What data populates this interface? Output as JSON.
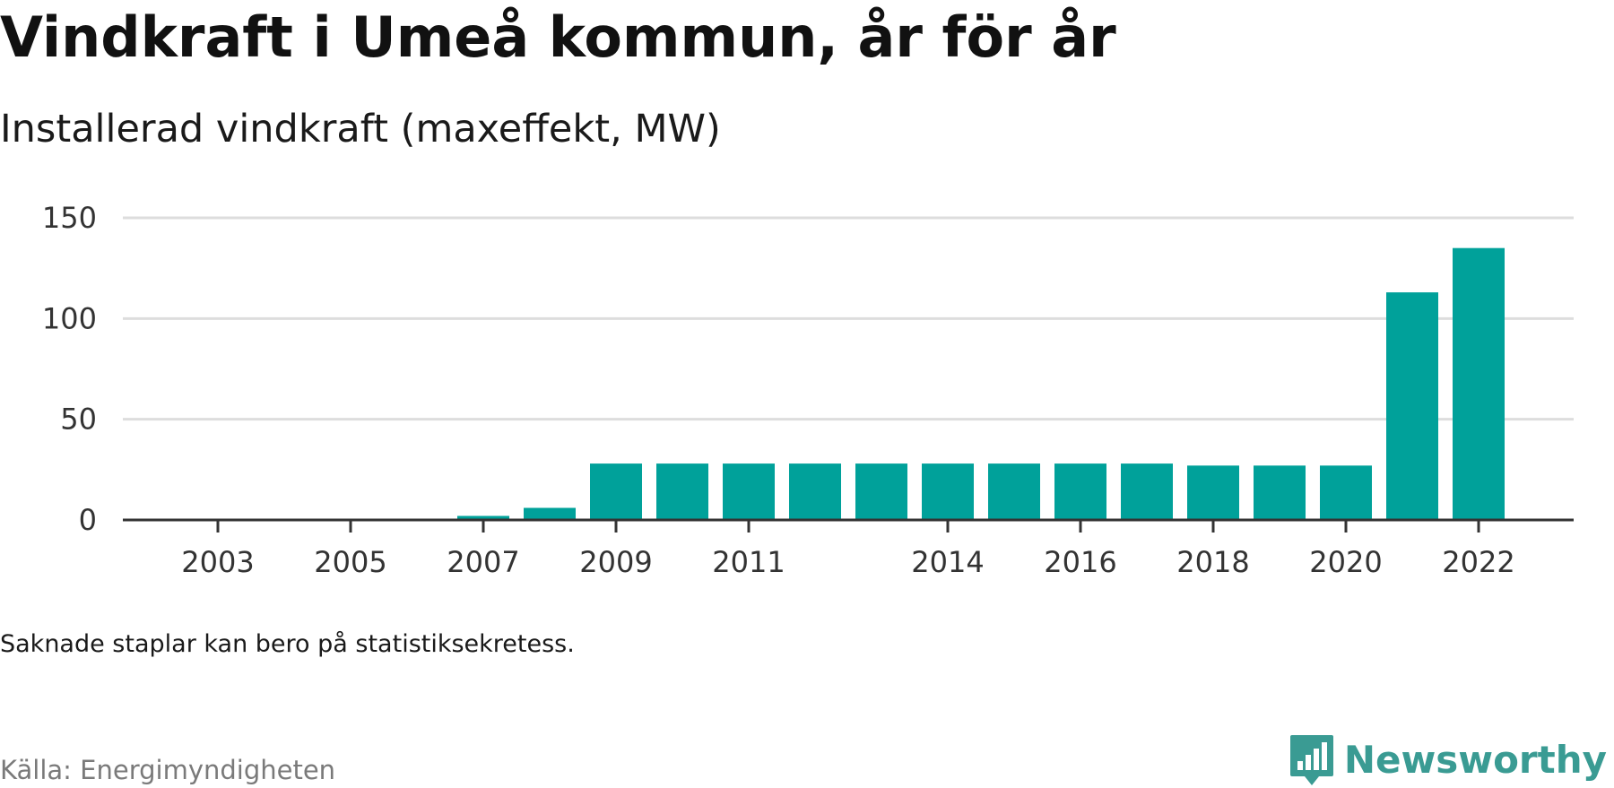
{
  "title": "Vindkraft i Umeå kommun, år för år",
  "subtitle": "Installerad vindkraft (maxeffekt, MW)",
  "note": "Saknade staplar kan bero på statistiksekretess.",
  "source": "Källa: Energimyndigheten",
  "brand": {
    "name": "Newsworthy",
    "logo_icon": "bar-chart-speech-bubble-icon",
    "color": "#3a9b93"
  },
  "colors": {
    "bar": "#00a19a",
    "grid": "#dddddd",
    "axis": "#333333"
  },
  "chart_data": {
    "type": "bar",
    "title": "",
    "xlabel": "",
    "ylabel": "",
    "categories": [
      2003,
      2004,
      2005,
      2006,
      2007,
      2008,
      2009,
      2010,
      2011,
      2012,
      2013,
      2014,
      2015,
      2016,
      2017,
      2018,
      2019,
      2020,
      2021,
      2022
    ],
    "values": [
      null,
      null,
      null,
      null,
      2,
      6,
      28,
      28,
      28,
      28,
      28,
      28,
      28,
      28,
      28,
      27,
      27,
      27,
      113,
      135
    ],
    "xticks": [
      2003,
      2005,
      2007,
      2009,
      2011,
      2014,
      2016,
      2018,
      2020,
      2022
    ],
    "yticks": [
      0,
      50,
      100,
      150
    ],
    "ylim": [
      0,
      150
    ],
    "grid": "horizontal",
    "legend": "none"
  }
}
